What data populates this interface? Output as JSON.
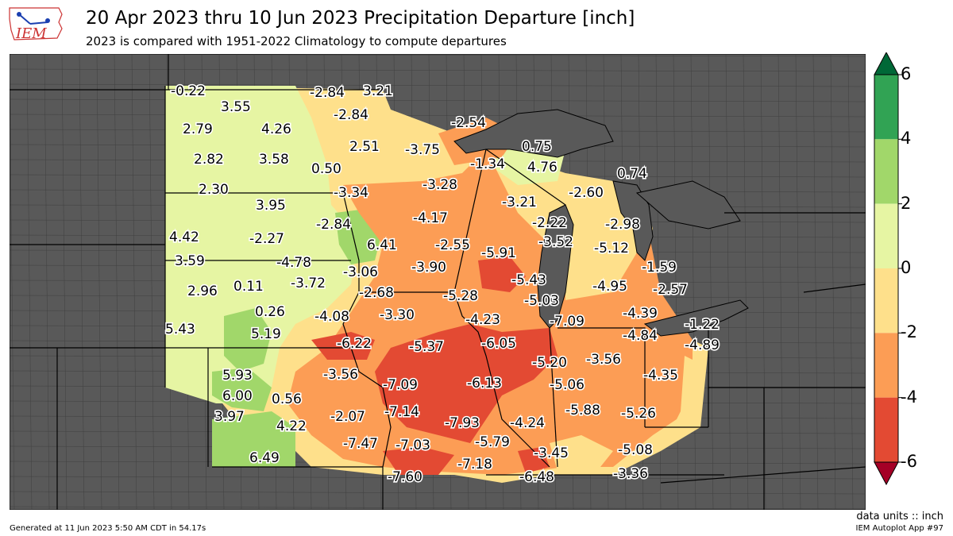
{
  "title": "20 Apr 2023 thru 10 Jun 2023 Precipitation Departure [inch]",
  "subtitle": "2023 is compared with 1951-2022 Climatology to compute departures",
  "logo_text": "IEM",
  "units_label": "data units :: inch",
  "footer_left": "Generated at 11 Jun 2023 5:50 AM CDT in 54.17s",
  "footer_right": "IEM Autoplot App #97",
  "colorbar": {
    "ticks": [
      "6",
      "4",
      "2",
      "0",
      "-2",
      "-4",
      "-6"
    ],
    "bins": [
      {
        "range": [
          4,
          6
        ],
        "color": "#31a354"
      },
      {
        "range": [
          2,
          4
        ],
        "color": "#a1d76a"
      },
      {
        "range": [
          0,
          2
        ],
        "color": "#e6f5a3"
      },
      {
        "range": [
          -2,
          0
        ],
        "color": "#fee08b"
      },
      {
        "range": [
          -4,
          -2
        ],
        "color": "#fc9d55"
      },
      {
        "range": [
          -6,
          -4
        ],
        "color": "#e34a33"
      }
    ],
    "over_color": "#006837",
    "under_color": "#a50026"
  },
  "colors": {
    "background_region": "#595959",
    "lake": "#595959",
    "boundary": "#000000"
  },
  "stations": [
    "-0.22",
    "-2.84",
    "3.21",
    "3.55",
    "-2.84",
    "-2.54",
    "2.79",
    "4.26",
    "2.51",
    "-3.75",
    "0.75",
    "2.82",
    "3.58",
    "0.50",
    "-1.34",
    "4.76",
    "0.74",
    "-3.28",
    "2.30",
    "-3.34",
    "-2.60",
    "3.95",
    "-3.21",
    "-4.17",
    "-2.22",
    "-2.98",
    "-2.84",
    "-3.52",
    "4.42",
    "-2.27",
    "6.41",
    "-2.55",
    "-5.91",
    "-5.12",
    "3.59",
    "-4.78",
    "-3.06",
    "-3.90",
    "-5.43",
    "-1.59",
    "2.96",
    "0.11",
    "-3.72",
    "-2.68",
    "-5.28",
    "-5.03",
    "-4.95",
    "-2.57",
    "0.26",
    "-4.08",
    "-3.30",
    "-4.23",
    "-7.09",
    "-4.39",
    "5.43",
    "5.19",
    "-6.22",
    "-5.37",
    "-6.05",
    "-4.84",
    "-1.22",
    "-4.89",
    "-5.20",
    "-3.56",
    "5.93",
    "-3.56",
    "-7.09",
    "-6.13",
    "-5.06",
    "-4.35",
    "6.00",
    "0.56",
    "-7.14",
    "3.97",
    "4.22",
    "-2.07",
    "-7.93",
    "-4.24",
    "-5.88",
    "-5.26",
    "-7.47",
    "-7.03",
    "-5.79",
    "-3.45",
    "-5.08",
    "6.49",
    "-7.18",
    "-7.60",
    "-6.48",
    "-3.36"
  ]
}
